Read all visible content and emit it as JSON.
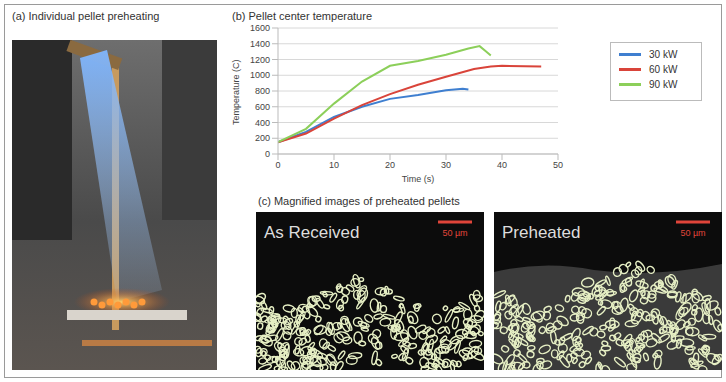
{
  "chart_data": {
    "type": "line",
    "title": "(b) Pellet center temperature",
    "x_label": "Time (s)",
    "y_label": "Temperature (C)",
    "xlim": [
      0,
      50
    ],
    "xticks": [
      0,
      10,
      20,
      30,
      40,
      50
    ],
    "ylim": [
      0,
      1600
    ],
    "yticks": [
      0,
      200,
      400,
      600,
      800,
      1000,
      1200,
      1400,
      1600
    ],
    "grid": true,
    "legend": "right",
    "series": [
      {
        "name": "30 kW",
        "color": "#3f7fd0",
        "x": [
          0,
          5,
          10,
          15,
          20,
          25,
          30,
          33,
          34
        ],
        "values": [
          150,
          280,
          470,
          600,
          700,
          750,
          810,
          830,
          820
        ]
      },
      {
        "name": "60 kW",
        "color": "#d9443a",
        "x": [
          0,
          5,
          10,
          15,
          20,
          25,
          30,
          35,
          38,
          40,
          47
        ],
        "values": [
          150,
          260,
          450,
          620,
          760,
          880,
          980,
          1080,
          1110,
          1120,
          1110
        ]
      },
      {
        "name": "90 kW",
        "color": "#8ccf5a",
        "x": [
          0,
          5,
          10,
          15,
          20,
          25,
          30,
          34,
          36,
          37,
          38
        ],
        "values": [
          150,
          320,
          640,
          920,
          1120,
          1180,
          1260,
          1340,
          1370,
          1310,
          1250
        ]
      }
    ]
  },
  "figure": {
    "panel_a": {
      "title": "(a) Individual pellet preheating"
    },
    "panel_c": {
      "title": "(c) Magnified images of preheated pellets",
      "images": [
        {
          "label": "As Received",
          "scale_bar": "50 µm"
        },
        {
          "label": "Preheated",
          "scale_bar": "50 µm"
        }
      ]
    }
  }
}
